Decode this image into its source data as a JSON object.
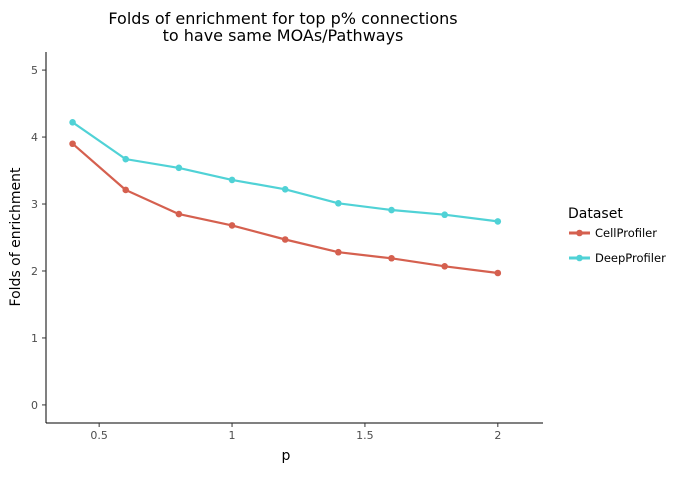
{
  "chart_data": {
    "type": "line",
    "title_line1": "Folds of enrichment for top p% connections",
    "title_line2": "to have same MOAs/Pathways",
    "xlabel": "p",
    "ylabel": "Folds of enrichment",
    "x": [
      0.4,
      0.6,
      0.8,
      1.0,
      1.2,
      1.4,
      1.6,
      1.8,
      2.0
    ],
    "xlim": [
      0.3,
      2.17
    ],
    "ylim": [
      -0.27,
      5.27
    ],
    "xticks": [
      0.5,
      1.0,
      1.5,
      2.0
    ],
    "xtick_labels": [
      "0.5",
      "1",
      "1.5",
      "2"
    ],
    "yticks": [
      0,
      1,
      2,
      3,
      4,
      5
    ],
    "ytick_labels": [
      "0",
      "1",
      "2",
      "3",
      "4",
      "5"
    ],
    "grid": false,
    "legend_title": "Dataset",
    "legend_position": "right",
    "series": [
      {
        "name": "CellProfiler",
        "color": "#D5604F",
        "values": [
          3.9,
          3.21,
          2.85,
          2.68,
          2.47,
          2.28,
          2.19,
          2.07,
          1.97
        ]
      },
      {
        "name": "DeepProfiler",
        "color": "#50D2D6",
        "values": [
          4.22,
          3.67,
          3.54,
          3.36,
          3.22,
          3.01,
          2.91,
          2.84,
          2.74
        ]
      }
    ]
  }
}
